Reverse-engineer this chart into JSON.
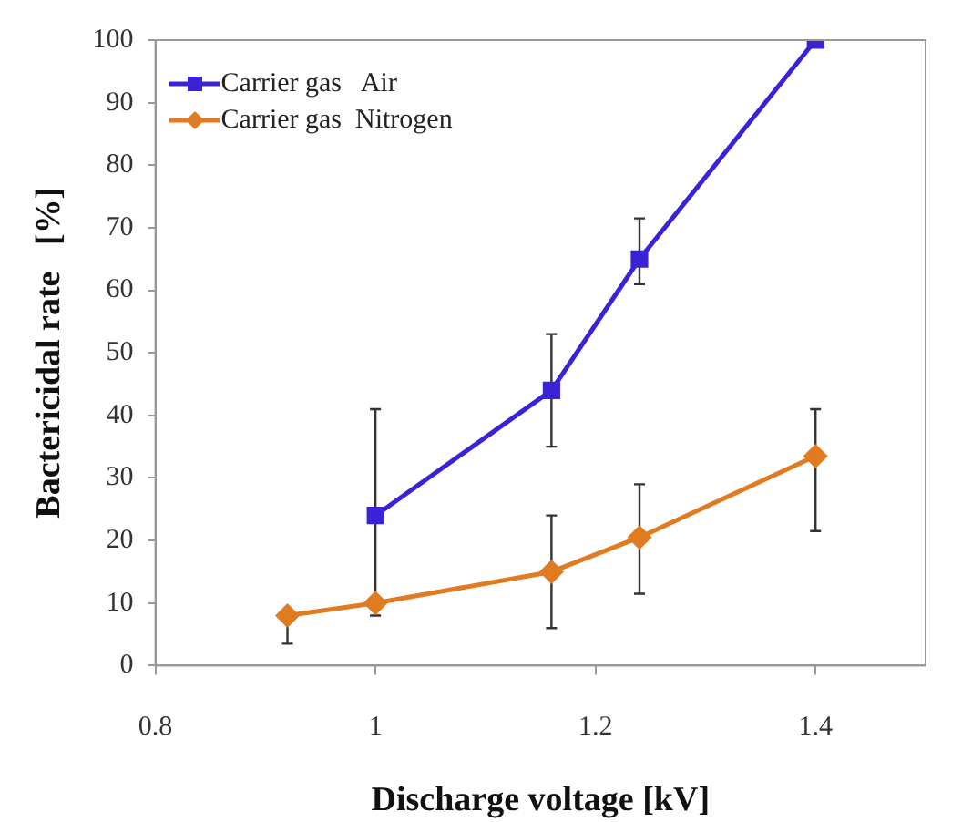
{
  "chart_data": {
    "type": "line",
    "xlabel": "Discharge voltage [kV]",
    "ylabel": "Bactericidal rate   [%]",
    "xlim": [
      0.8,
      1.5
    ],
    "xticks": [
      0.8,
      1,
      1.2,
      1.4
    ],
    "ylim": [
      0,
      100
    ],
    "yticks": [
      0,
      10,
      20,
      30,
      40,
      50,
      60,
      70,
      80,
      90,
      100
    ],
    "grid": false,
    "legend": "top left",
    "line_style": "solid",
    "series": [
      {
        "name": "Carrier gas   Air",
        "color": "#3a22d6",
        "marker": "square",
        "x": [
          1,
          1.16,
          1.24,
          1.4
        ],
        "values": [
          24,
          44,
          65,
          100
        ],
        "errors": [
          [
            8,
            41
          ],
          [
            35,
            53
          ],
          [
            61,
            71.5
          ],
          null
        ]
      },
      {
        "name": "Carrier gas  Nitrogen",
        "color": "#e07b22",
        "marker": "diamond",
        "x": [
          0.92,
          1,
          1.16,
          1.24,
          1.4
        ],
        "values": [
          8,
          10,
          15,
          20.5,
          33.5
        ],
        "errors": [
          [
            3.5,
            8
          ],
          null,
          [
            6,
            24
          ],
          [
            11.5,
            29
          ],
          [
            21.5,
            41
          ]
        ]
      }
    ]
  }
}
